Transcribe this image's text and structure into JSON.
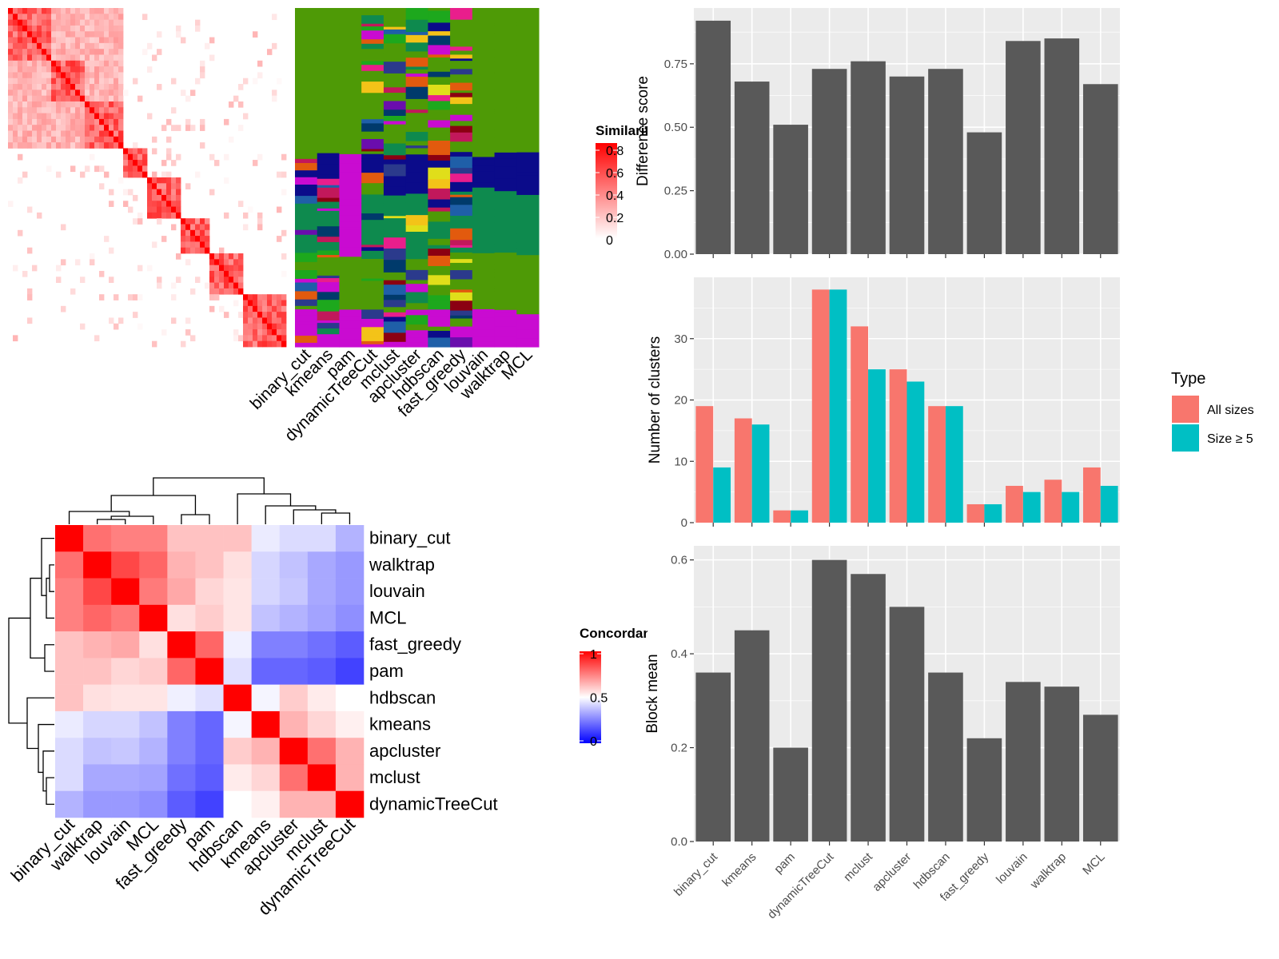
{
  "colors": {
    "panel_bg": "#EBEBEB",
    "grid": "#FFFFFF",
    "bar_fill": "#595959",
    "all_sizes": "#F8766D",
    "size_ge5": "#00BFC4",
    "sim_high": "#FF0000",
    "sim_low": "#FFFFFF",
    "conc_high": "#FF0000",
    "conc_mid": "#FFFFFF",
    "conc_low": "#0000FF",
    "cluster_palette": [
      "#4E9A06",
      "#0B0B8A",
      "#C90BD1",
      "#0E8A4E",
      "#1F5FA8",
      "#E0DE1A",
      "#8B0012",
      "#E25A0E",
      "#C2185B",
      "#F3C318",
      "#1DA81D",
      "#6A0DAD",
      "#2B3A8C",
      "#E91E8C",
      "#003A6B"
    ]
  },
  "chart_data": [
    {
      "type": "heatmap",
      "id": "similarity-heatmap",
      "legend_title": "Similarity",
      "legend_title_visible": "Simila",
      "legend_ticks": [
        "0.8",
        "0.6",
        "0.4",
        "0.2",
        "0"
      ],
      "legend_values": [
        0.8,
        0.6,
        0.4,
        0.2,
        0
      ],
      "note": ""
    },
    {
      "type": "heatmap",
      "id": "cluster-assignment-heatmap",
      "columns": [
        "binary_cut",
        "kmeans",
        "pam",
        "dynamicTreeCut",
        "mclust",
        "apcluster",
        "hdbscan",
        "fast_greedy",
        "louvain",
        "walktrap",
        "MCL"
      ]
    },
    {
      "type": "heatmap",
      "id": "concordance-heatmap",
      "legend_title": "Concordance",
      "legend_title_visible": "Concorc",
      "legend_ticks": [
        "1",
        "0.5",
        "0"
      ],
      "legend_values": [
        1,
        0.5,
        0
      ],
      "rows": [
        "binary_cut",
        "walktrap",
        "louvain",
        "MCL",
        "fast_greedy",
        "pam",
        "hdbscan",
        "kmeans",
        "apcluster",
        "mclust",
        "dynamicTreeCut"
      ],
      "columns": [
        "binary_cut",
        "walktrap",
        "louvain",
        "MCL",
        "fast_greedy",
        "pam",
        "hdbscan",
        "kmeans",
        "apcluster",
        "mclust",
        "dynamicTreeCut"
      ],
      "values": [
        [
          1.0,
          0.78,
          0.75,
          0.75,
          0.62,
          0.62,
          0.62,
          0.46,
          0.43,
          0.43,
          0.35
        ],
        [
          0.78,
          1.0,
          0.86,
          0.8,
          0.65,
          0.62,
          0.56,
          0.42,
          0.38,
          0.33,
          0.3
        ],
        [
          0.75,
          0.86,
          1.0,
          0.76,
          0.67,
          0.58,
          0.55,
          0.42,
          0.39,
          0.33,
          0.3
        ],
        [
          0.75,
          0.8,
          0.76,
          1.0,
          0.56,
          0.6,
          0.55,
          0.38,
          0.35,
          0.32,
          0.28
        ],
        [
          0.62,
          0.65,
          0.67,
          0.56,
          1.0,
          0.8,
          0.47,
          0.25,
          0.25,
          0.22,
          0.18
        ],
        [
          0.62,
          0.62,
          0.58,
          0.6,
          0.8,
          1.0,
          0.44,
          0.2,
          0.2,
          0.18,
          0.13
        ],
        [
          0.62,
          0.56,
          0.55,
          0.55,
          0.47,
          0.44,
          1.0,
          0.48,
          0.6,
          0.54,
          0.5
        ],
        [
          0.46,
          0.42,
          0.42,
          0.38,
          0.25,
          0.2,
          0.48,
          1.0,
          0.65,
          0.58,
          0.53
        ],
        [
          0.43,
          0.38,
          0.39,
          0.35,
          0.25,
          0.2,
          0.6,
          0.65,
          1.0,
          0.78,
          0.65
        ],
        [
          0.43,
          0.33,
          0.33,
          0.32,
          0.22,
          0.18,
          0.54,
          0.58,
          0.78,
          1.0,
          0.65
        ],
        [
          0.35,
          0.3,
          0.3,
          0.28,
          0.18,
          0.13,
          0.5,
          0.53,
          0.65,
          0.65,
          1.0
        ]
      ]
    },
    {
      "type": "bar",
      "id": "difference-score",
      "categories": [
        "binary_cut",
        "kmeans",
        "pam",
        "dynamicTreeCut",
        "mclust",
        "apcluster",
        "hdbscan",
        "fast_greedy",
        "louvain",
        "walktrap",
        "MCL"
      ],
      "values": [
        0.92,
        0.68,
        0.51,
        0.73,
        0.76,
        0.7,
        0.73,
        0.48,
        0.84,
        0.85,
        0.67
      ],
      "xlabel": "",
      "ylabel": "Difference score",
      "ylim": [
        0,
        0.97
      ],
      "yticks": [
        0,
        0.25,
        0.5,
        0.75
      ],
      "ytick_labels": [
        "0.00",
        "0.25",
        "0.50",
        "0.75"
      ],
      "grid": true
    },
    {
      "type": "bar",
      "id": "number-of-clusters",
      "categories": [
        "binary_cut",
        "kmeans",
        "pam",
        "dynamicTreeCut",
        "mclust",
        "apcluster",
        "hdbscan",
        "fast_greedy",
        "louvain",
        "walktrap",
        "MCL"
      ],
      "series": [
        {
          "name": "All sizes",
          "values": [
            19,
            17,
            2,
            38,
            32,
            25,
            19,
            3,
            6,
            7,
            9
          ]
        },
        {
          "name": "Size ≥ 5",
          "values": [
            9,
            16,
            2,
            38,
            25,
            23,
            19,
            3,
            5,
            5,
            6
          ]
        }
      ],
      "xlabel": "",
      "ylabel": "Number of clusters",
      "ylim": [
        0,
        40
      ],
      "yticks": [
        0,
        10,
        20,
        30
      ],
      "ytick_labels": [
        "0",
        "10",
        "20",
        "30"
      ],
      "legend_title": "Type",
      "legend_position": "right",
      "grid": true
    },
    {
      "type": "bar",
      "id": "block-mean",
      "categories": [
        "binary_cut",
        "kmeans",
        "pam",
        "dynamicTreeCut",
        "mclust",
        "apcluster",
        "hdbscan",
        "fast_greedy",
        "louvain",
        "walktrap",
        "MCL"
      ],
      "values": [
        0.36,
        0.45,
        0.2,
        0.6,
        0.57,
        0.5,
        0.36,
        0.22,
        0.34,
        0.33,
        0.27
      ],
      "xlabel": "",
      "ylabel": "Block mean",
      "ylim": [
        0,
        0.63
      ],
      "yticks": [
        0,
        0.2,
        0.4,
        0.6
      ],
      "ytick_labels": [
        "0.0",
        "0.2",
        "0.4",
        "0.6"
      ],
      "grid": true
    }
  ]
}
